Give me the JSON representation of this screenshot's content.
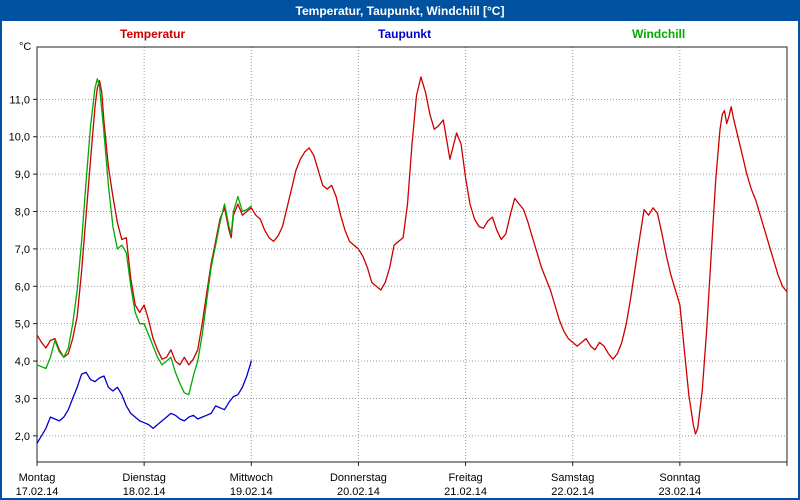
{
  "window": {
    "title": "Temperatur, Taupunkt, Windchill [°C]"
  },
  "colors": {
    "titlebar": "#0052a0",
    "border": "#0052a0",
    "grid": "#999999"
  },
  "chart_data": {
    "type": "line",
    "title": "Temperatur, Taupunkt, Windchill [°C]",
    "y_unit": "°C",
    "ylim": [
      1.3,
      12.4
    ],
    "yticks": [
      2,
      3,
      4,
      5,
      6,
      7,
      8,
      9,
      10,
      11
    ],
    "ytick_labels": [
      "2,0",
      "3,0",
      "4,0",
      "5,0",
      "6,0",
      "7,0",
      "8,0",
      "9,0",
      "10,0",
      "11,0"
    ],
    "hours_total": 168,
    "grid": "dotted",
    "legend_position": "top",
    "x_axis_days": [
      {
        "name": "Montag",
        "date": "17.02.14",
        "hour": 0
      },
      {
        "name": "Dienstag",
        "date": "18.02.14",
        "hour": 24
      },
      {
        "name": "Mittwoch",
        "date": "19.02.14",
        "hour": 48
      },
      {
        "name": "Donnerstag",
        "date": "20.02.14",
        "hour": 72
      },
      {
        "name": "Freitag",
        "date": "21.02.14",
        "hour": 96
      },
      {
        "name": "Samstag",
        "date": "22.02.14",
        "hour": 120
      },
      {
        "name": "Sonntag",
        "date": "23.02.14",
        "hour": 144
      }
    ],
    "series": [
      {
        "name": "Temperatur",
        "color": "#cc0000",
        "points": [
          [
            0,
            4.7
          ],
          [
            1,
            4.5
          ],
          [
            2,
            4.35
          ],
          [
            3,
            4.55
          ],
          [
            4,
            4.6
          ],
          [
            5,
            4.3
          ],
          [
            6,
            4.1
          ],
          [
            7,
            4.2
          ],
          [
            8,
            4.6
          ],
          [
            9,
            5.2
          ],
          [
            10,
            6.4
          ],
          [
            11,
            7.9
          ],
          [
            12,
            9.4
          ],
          [
            13,
            10.8
          ],
          [
            13.5,
            11.3
          ],
          [
            14,
            11.5
          ],
          [
            14.5,
            11.2
          ],
          [
            15,
            10.4
          ],
          [
            16,
            9.2
          ],
          [
            17,
            8.4
          ],
          [
            18,
            7.7
          ],
          [
            19,
            7.25
          ],
          [
            20,
            7.3
          ],
          [
            21,
            6.2
          ],
          [
            22,
            5.5
          ],
          [
            23,
            5.3
          ],
          [
            24,
            5.5
          ],
          [
            25,
            5.1
          ],
          [
            26,
            4.6
          ],
          [
            27,
            4.3
          ],
          [
            28,
            4.05
          ],
          [
            29,
            4.1
          ],
          [
            30,
            4.3
          ],
          [
            31,
            4.0
          ],
          [
            32,
            3.9
          ],
          [
            33,
            4.1
          ],
          [
            34,
            3.9
          ],
          [
            35,
            4.05
          ],
          [
            36,
            4.3
          ],
          [
            37,
            5.0
          ],
          [
            38,
            5.8
          ],
          [
            39,
            6.6
          ],
          [
            40,
            7.2
          ],
          [
            41,
            7.8
          ],
          [
            42,
            8.1
          ],
          [
            43,
            7.5
          ],
          [
            43.5,
            7.3
          ],
          [
            44,
            7.9
          ],
          [
            45,
            8.2
          ],
          [
            46,
            7.9
          ],
          [
            47,
            8.0
          ],
          [
            48,
            8.1
          ],
          [
            49,
            7.9
          ],
          [
            50,
            7.8
          ],
          [
            51,
            7.5
          ],
          [
            52,
            7.3
          ],
          [
            53,
            7.2
          ],
          [
            54,
            7.35
          ],
          [
            55,
            7.6
          ],
          [
            56,
            8.1
          ],
          [
            57,
            8.6
          ],
          [
            58,
            9.1
          ],
          [
            59,
            9.4
          ],
          [
            60,
            9.6
          ],
          [
            61,
            9.7
          ],
          [
            62,
            9.5
          ],
          [
            63,
            9.1
          ],
          [
            64,
            8.7
          ],
          [
            65,
            8.6
          ],
          [
            66,
            8.7
          ],
          [
            67,
            8.4
          ],
          [
            68,
            7.9
          ],
          [
            69,
            7.5
          ],
          [
            70,
            7.2
          ],
          [
            71,
            7.1
          ],
          [
            72,
            7.0
          ],
          [
            73,
            6.8
          ],
          [
            74,
            6.5
          ],
          [
            75,
            6.1
          ],
          [
            76,
            6.0
          ],
          [
            77,
            5.9
          ],
          [
            78,
            6.1
          ],
          [
            79,
            6.5
          ],
          [
            80,
            7.1
          ],
          [
            81,
            7.2
          ],
          [
            82,
            7.3
          ],
          [
            83,
            8.2
          ],
          [
            84,
            9.8
          ],
          [
            85,
            11.1
          ],
          [
            86,
            11.6
          ],
          [
            87,
            11.2
          ],
          [
            88,
            10.6
          ],
          [
            89,
            10.2
          ],
          [
            90,
            10.3
          ],
          [
            91,
            10.45
          ],
          [
            92.5,
            9.4
          ],
          [
            94,
            10.1
          ],
          [
            95,
            9.8
          ],
          [
            96,
            8.9
          ],
          [
            97,
            8.2
          ],
          [
            98,
            7.8
          ],
          [
            99,
            7.6
          ],
          [
            100,
            7.55
          ],
          [
            101,
            7.75
          ],
          [
            102,
            7.85
          ],
          [
            103,
            7.5
          ],
          [
            104,
            7.25
          ],
          [
            105,
            7.4
          ],
          [
            106,
            7.9
          ],
          [
            107,
            8.35
          ],
          [
            108,
            8.2
          ],
          [
            109,
            8.05
          ],
          [
            110,
            7.7
          ],
          [
            111,
            7.3
          ],
          [
            112,
            6.9
          ],
          [
            113,
            6.5
          ],
          [
            114,
            6.2
          ],
          [
            115,
            5.9
          ],
          [
            116,
            5.5
          ],
          [
            117,
            5.1
          ],
          [
            118,
            4.8
          ],
          [
            119,
            4.6
          ],
          [
            120,
            4.5
          ],
          [
            121,
            4.4
          ],
          [
            122,
            4.5
          ],
          [
            123,
            4.6
          ],
          [
            124,
            4.4
          ],
          [
            125,
            4.3
          ],
          [
            126,
            4.5
          ],
          [
            127,
            4.4
          ],
          [
            128,
            4.2
          ],
          [
            129,
            4.05
          ],
          [
            130,
            4.2
          ],
          [
            131,
            4.5
          ],
          [
            132,
            5.0
          ],
          [
            133,
            5.7
          ],
          [
            134,
            6.5
          ],
          [
            135,
            7.3
          ],
          [
            136,
            8.05
          ],
          [
            137,
            7.9
          ],
          [
            138,
            8.1
          ],
          [
            139,
            7.95
          ],
          [
            140,
            7.4
          ],
          [
            141,
            6.8
          ],
          [
            142,
            6.3
          ],
          [
            143,
            5.9
          ],
          [
            144,
            5.5
          ],
          [
            145,
            4.3
          ],
          [
            146,
            3.1
          ],
          [
            147,
            2.3
          ],
          [
            147.5,
            2.05
          ],
          [
            148,
            2.2
          ],
          [
            149,
            3.2
          ],
          [
            150,
            4.8
          ],
          [
            151,
            6.8
          ],
          [
            152,
            8.8
          ],
          [
            153,
            10.2
          ],
          [
            153.5,
            10.6
          ],
          [
            154,
            10.7
          ],
          [
            154.5,
            10.35
          ],
          [
            155,
            10.55
          ],
          [
            155.5,
            10.8
          ],
          [
            156,
            10.5
          ],
          [
            157,
            10.0
          ],
          [
            158,
            9.5
          ],
          [
            159,
            9.0
          ],
          [
            160,
            8.6
          ],
          [
            161,
            8.3
          ],
          [
            162,
            7.9
          ],
          [
            163,
            7.5
          ],
          [
            164,
            7.1
          ],
          [
            165,
            6.7
          ],
          [
            166,
            6.3
          ],
          [
            167,
            6.0
          ],
          [
            168,
            5.85
          ]
        ]
      },
      {
        "name": "Taupunkt",
        "color": "#0000cc",
        "points": [
          [
            0,
            1.8
          ],
          [
            1,
            2.0
          ],
          [
            2,
            2.2
          ],
          [
            3,
            2.5
          ],
          [
            4,
            2.45
          ],
          [
            5,
            2.4
          ],
          [
            6,
            2.5
          ],
          [
            7,
            2.7
          ],
          [
            8,
            3.0
          ],
          [
            9,
            3.3
          ],
          [
            10,
            3.65
          ],
          [
            11,
            3.7
          ],
          [
            12,
            3.5
          ],
          [
            13,
            3.45
          ],
          [
            14,
            3.55
          ],
          [
            15,
            3.6
          ],
          [
            16,
            3.3
          ],
          [
            17,
            3.2
          ],
          [
            18,
            3.3
          ],
          [
            19,
            3.1
          ],
          [
            20,
            2.8
          ],
          [
            21,
            2.6
          ],
          [
            22,
            2.5
          ],
          [
            23,
            2.4
          ],
          [
            24,
            2.35
          ],
          [
            25,
            2.3
          ],
          [
            26,
            2.2
          ],
          [
            27,
            2.3
          ],
          [
            28,
            2.4
          ],
          [
            29,
            2.5
          ],
          [
            30,
            2.6
          ],
          [
            31,
            2.55
          ],
          [
            32,
            2.45
          ],
          [
            33,
            2.4
          ],
          [
            34,
            2.5
          ],
          [
            35,
            2.55
          ],
          [
            36,
            2.45
          ],
          [
            37,
            2.5
          ],
          [
            38,
            2.55
          ],
          [
            39,
            2.6
          ],
          [
            40,
            2.8
          ],
          [
            41,
            2.75
          ],
          [
            42,
            2.7
          ],
          [
            43,
            2.9
          ],
          [
            44,
            3.05
          ],
          [
            45,
            3.1
          ],
          [
            46,
            3.3
          ],
          [
            47,
            3.6
          ],
          [
            48,
            4.0
          ]
        ]
      },
      {
        "name": "Windchill",
        "color": "#00aa00",
        "points": [
          [
            0,
            3.9
          ],
          [
            1,
            3.85
          ],
          [
            2,
            3.8
          ],
          [
            3,
            4.1
          ],
          [
            4,
            4.55
          ],
          [
            5,
            4.25
          ],
          [
            6,
            4.1
          ],
          [
            7,
            4.35
          ],
          [
            8,
            5.0
          ],
          [
            9,
            5.9
          ],
          [
            10,
            7.2
          ],
          [
            11,
            8.8
          ],
          [
            12,
            10.3
          ],
          [
            13,
            11.3
          ],
          [
            13.5,
            11.55
          ],
          [
            14,
            11.35
          ],
          [
            15,
            10.1
          ],
          [
            16,
            8.7
          ],
          [
            17,
            7.6
          ],
          [
            18,
            7.0
          ],
          [
            19,
            7.1
          ],
          [
            20,
            6.9
          ],
          [
            21,
            6.0
          ],
          [
            22,
            5.3
          ],
          [
            23,
            5.0
          ],
          [
            24,
            5.0
          ],
          [
            25,
            4.7
          ],
          [
            26,
            4.4
          ],
          [
            27,
            4.1
          ],
          [
            28,
            3.9
          ],
          [
            29,
            4.0
          ],
          [
            30,
            4.1
          ],
          [
            31,
            3.7
          ],
          [
            32,
            3.4
          ],
          [
            33,
            3.15
          ],
          [
            34,
            3.1
          ],
          [
            35,
            3.6
          ],
          [
            36,
            4.0
          ],
          [
            37,
            4.7
          ],
          [
            38,
            5.6
          ],
          [
            39,
            6.5
          ],
          [
            40,
            7.1
          ],
          [
            41,
            7.7
          ],
          [
            42,
            8.2
          ],
          [
            43,
            7.6
          ],
          [
            43.5,
            7.4
          ],
          [
            44,
            8.0
          ],
          [
            45,
            8.4
          ],
          [
            46,
            8.0
          ],
          [
            47,
            8.05
          ],
          [
            48,
            8.15
          ]
        ]
      }
    ]
  }
}
